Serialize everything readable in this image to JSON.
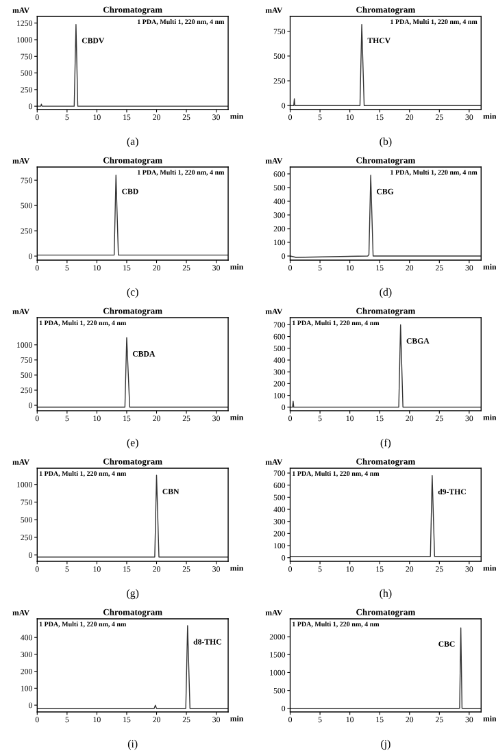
{
  "chart_data": [
    {
      "type": "line",
      "title": "Chromatogram",
      "ylabel": "mAV",
      "xlabel": "min",
      "x": [
        0,
        0.6,
        0.7,
        0.8,
        6.2,
        6.5,
        6.8,
        32
      ],
      "values": [
        0,
        0,
        30,
        0,
        0,
        1230,
        0,
        0
      ],
      "color": "#333333",
      "xlim": [
        0,
        32
      ],
      "ylim": [
        -50,
        1350
      ],
      "xticks": [
        0,
        5,
        10,
        15,
        20,
        25,
        30
      ],
      "yticks": [
        0,
        250,
        500,
        750,
        1000,
        1250
      ],
      "grid": false,
      "annotations": [
        "1 PDA, Multi 1, 220 nm, 4 nm",
        {
          "text": "CBDV",
          "x": 6.5,
          "y": 1230
        },
        "(a)"
      ]
    },
    {
      "type": "line",
      "title": "Chromatogram",
      "ylabel": "mAV",
      "xlabel": "min",
      "x": [
        0,
        0.6,
        0.7,
        0.8,
        11.7,
        12.0,
        12.4,
        32
      ],
      "values": [
        0,
        0,
        70,
        0,
        0,
        820,
        0,
        0
      ],
      "color": "#333333",
      "xlim": [
        0,
        32
      ],
      "ylim": [
        -40,
        900
      ],
      "xticks": [
        0,
        5,
        10,
        15,
        20,
        25,
        30
      ],
      "yticks": [
        0,
        250,
        500,
        750
      ],
      "grid": false,
      "annotations": [
        "1 PDA, Multi 1, 220 nm, 4 nm",
        {
          "text": "THCV",
          "x": 12.0,
          "y": 820
        },
        "(b)"
      ]
    },
    {
      "type": "line",
      "title": "Chromatogram",
      "ylabel": "mAV",
      "xlabel": "min",
      "x": [
        0,
        12.9,
        13.2,
        13.6,
        32
      ],
      "values": [
        10,
        10,
        800,
        10,
        10
      ],
      "color": "#333333",
      "xlim": [
        0,
        32
      ],
      "ylim": [
        -40,
        880
      ],
      "xticks": [
        0,
        5,
        10,
        15,
        20,
        25,
        30
      ],
      "yticks": [
        0,
        250,
        500,
        750
      ],
      "grid": false,
      "annotations": [
        "1 PDA, Multi 1, 220 nm, 4 nm",
        {
          "text": "CBD",
          "x": 13.2,
          "y": 800
        },
        "(c)"
      ]
    },
    {
      "type": "line",
      "title": "Chromatogram",
      "ylabel": "mAV",
      "xlabel": "min",
      "x": [
        0,
        1,
        13.0,
        13.2,
        13.5,
        13.9,
        32
      ],
      "values": [
        0,
        -10,
        0,
        10,
        590,
        0,
        0
      ],
      "color": "#333333",
      "xlim": [
        0,
        32
      ],
      "ylim": [
        -30,
        650
      ],
      "xticks": [
        0,
        5,
        10,
        15,
        20,
        25,
        30
      ],
      "yticks": [
        0,
        100,
        200,
        300,
        400,
        500,
        600
      ],
      "grid": false,
      "annotations": [
        "1 PDA, Multi 1, 220 nm, 4 nm",
        {
          "text": "CBG",
          "x": 13.5,
          "y": 590
        },
        "(d)"
      ]
    },
    {
      "type": "line",
      "title": "Chromatogram",
      "ylabel": "mAV",
      "xlabel": "min",
      "x": [
        0,
        14.7,
        15.0,
        15.5,
        32
      ],
      "values": [
        -30,
        -30,
        1120,
        -30,
        -30
      ],
      "color": "#333333",
      "xlim": [
        0,
        32
      ],
      "ylim": [
        -90,
        1450
      ],
      "xticks": [
        0,
        5,
        10,
        15,
        20,
        25,
        30
      ],
      "yticks": [
        0,
        250,
        500,
        750,
        1000
      ],
      "grid": false,
      "annotations": [
        "1 PDA, Multi 1, 220 nm, 4 nm",
        {
          "text": "CBDA",
          "x": 15.0,
          "y": 1120
        },
        "(e)"
      ]
    },
    {
      "type": "line",
      "title": "Chromatogram",
      "ylabel": "mAV",
      "xlabel": "min",
      "x": [
        0,
        0.4,
        0.5,
        0.6,
        18.2,
        18.5,
        18.9,
        32
      ],
      "values": [
        0,
        0,
        50,
        0,
        0,
        700,
        0,
        0
      ],
      "color": "#333333",
      "xlim": [
        0,
        32
      ],
      "ylim": [
        -30,
        760
      ],
      "xticks": [
        0,
        5,
        10,
        15,
        20,
        25,
        30
      ],
      "yticks": [
        0,
        100,
        200,
        300,
        400,
        500,
        600,
        700
      ],
      "grid": false,
      "annotations": [
        "1 PDA, Multi 1, 220 nm, 4 nm",
        {
          "text": "CBGA",
          "x": 18.5,
          "y": 700
        },
        "(f)"
      ]
    },
    {
      "type": "line",
      "title": "Chromatogram",
      "ylabel": "mAV",
      "xlabel": "min",
      "x": [
        0,
        19.7,
        20.0,
        20.4,
        32
      ],
      "values": [
        -30,
        -30,
        1130,
        -30,
        -30
      ],
      "color": "#333333",
      "xlim": [
        0,
        32
      ],
      "ylim": [
        -90,
        1230
      ],
      "xticks": [
        0,
        5,
        10,
        15,
        20,
        25,
        30
      ],
      "yticks": [
        0,
        250,
        500,
        750,
        1000
      ],
      "grid": false,
      "annotations": [
        "1 PDA, Multi 1, 220 nm, 4 nm",
        {
          "text": "CBN",
          "x": 20.0,
          "y": 1130
        },
        "(g)"
      ]
    },
    {
      "type": "line",
      "title": "Chromatogram",
      "ylabel": "mAV",
      "xlabel": "min",
      "x": [
        0,
        23.5,
        23.8,
        24.2,
        32
      ],
      "values": [
        10,
        10,
        680,
        10,
        10
      ],
      "color": "#333333",
      "xlim": [
        0,
        32
      ],
      "ylim": [
        -30,
        740
      ],
      "xticks": [
        0,
        5,
        10,
        15,
        20,
        25,
        30
      ],
      "yticks": [
        0,
        100,
        200,
        300,
        400,
        500,
        600,
        700
      ],
      "grid": false,
      "annotations": [
        "1 PDA, Multi 1, 220 nm, 4 nm",
        {
          "text": "d9-THC",
          "x": 23.8,
          "y": 680
        },
        "(h)"
      ]
    },
    {
      "type": "line",
      "title": "Chromatogram",
      "ylabel": "mAV",
      "xlabel": "min",
      "x": [
        0,
        19.6,
        19.8,
        20.0,
        24.9,
        25.2,
        25.6,
        32
      ],
      "values": [
        -20,
        -20,
        0,
        -20,
        -20,
        470,
        -20,
        -20
      ],
      "color": "#333333",
      "xlim": [
        0,
        32
      ],
      "ylim": [
        -40,
        510
      ],
      "xticks": [
        0,
        5,
        10,
        15,
        20,
        25,
        30
      ],
      "yticks": [
        0,
        100,
        200,
        300,
        400
      ],
      "grid": false,
      "annotations": [
        "1 PDA, Multi 1, 220 nm, 4 nm",
        {
          "text": "d8-THC",
          "x": 25.2,
          "y": 470
        },
        "(i)"
      ]
    },
    {
      "type": "line",
      "title": "Chromatogram",
      "ylabel": "mAV",
      "xlabel": "min",
      "x": [
        0,
        28.4,
        28.6,
        28.8,
        32
      ],
      "values": [
        0,
        0,
        2250,
        0,
        0
      ],
      "color": "#333333",
      "xlim": [
        0,
        32
      ],
      "ylim": [
        -100,
        2500
      ],
      "xticks": [
        0,
        5,
        10,
        15,
        20,
        25,
        30
      ],
      "yticks": [
        0,
        500,
        1000,
        1500,
        2000
      ],
      "grid": false,
      "annotations": [
        "1 PDA, Multi 1, 220 nm, 4 nm",
        {
          "text": "CBC",
          "x": 28.6,
          "y": 2250
        },
        "(j)"
      ]
    }
  ]
}
